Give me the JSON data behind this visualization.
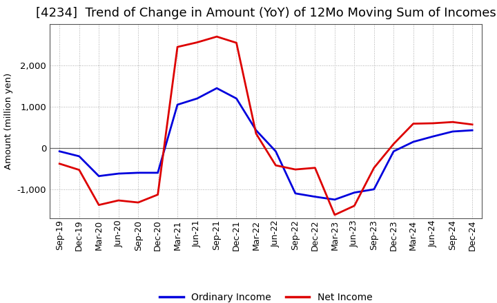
{
  "title": "[4234]  Trend of Change in Amount (YoY) of 12Mo Moving Sum of Incomes",
  "ylabel": "Amount (million yen)",
  "x_labels": [
    "Sep-19",
    "Dec-19",
    "Mar-20",
    "Jun-20",
    "Sep-20",
    "Dec-20",
    "Mar-21",
    "Jun-21",
    "Sep-21",
    "Dec-21",
    "Mar-22",
    "Jun-22",
    "Sep-22",
    "Dec-22",
    "Mar-23",
    "Jun-23",
    "Sep-23",
    "Dec-23",
    "Mar-24",
    "Jun-24",
    "Sep-24",
    "Dec-24"
  ],
  "ordinary_income": [
    -80,
    -200,
    -680,
    -620,
    -600,
    -600,
    1050,
    1200,
    1450,
    1200,
    430,
    -80,
    -1100,
    -1180,
    -1250,
    -1080,
    -1000,
    -80,
    150,
    280,
    400,
    430
  ],
  "net_income": [
    -380,
    -530,
    -1380,
    -1270,
    -1320,
    -1130,
    2450,
    2560,
    2700,
    2550,
    350,
    -420,
    -520,
    -480,
    -1620,
    -1400,
    -480,
    100,
    590,
    600,
    630,
    570
  ],
  "ordinary_color": "#0000dd",
  "net_color": "#dd0000",
  "line_width": 2.0,
  "ylim": [
    -1700,
    3000
  ],
  "yticks": [
    -1000,
    0,
    1000,
    2000
  ],
  "background_color": "#ffffff",
  "grid_color": "#aaaaaa",
  "title_fontsize": 13,
  "axis_fontsize": 9.5,
  "tick_fontsize": 9,
  "legend_fontsize": 10
}
